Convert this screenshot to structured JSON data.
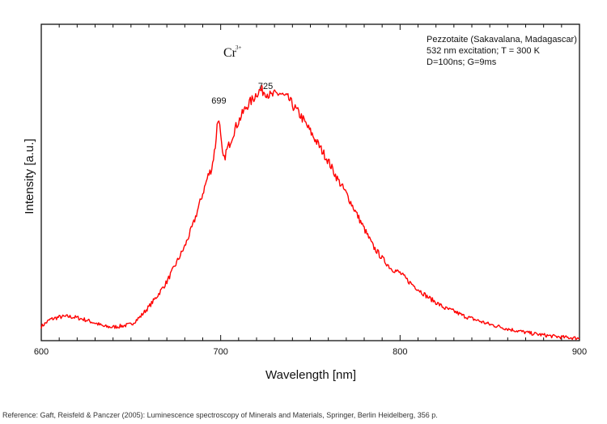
{
  "chart_data": {
    "type": "line",
    "title": "",
    "xlabel": "Wavelength [nm]",
    "ylabel": "Intensity [a.u.]",
    "xlim": [
      600,
      900
    ],
    "ylim": [
      0,
      1
    ],
    "x_ticks": [
      "600",
      "700",
      "800",
      "900"
    ],
    "y_tick_labels": false,
    "grid": false,
    "line_color": "#ff0000",
    "legend_text": [
      "Pezzotaite (Sakavalana, Madagascar)",
      "532 nm excitation; T = 300 K",
      "D=100ns; G=9ms"
    ],
    "legend_position": "top-right",
    "ion_label": {
      "base": "Cr",
      "sup": "3+"
    },
    "peak_labels": [
      {
        "text": "699",
        "x": 699,
        "y": 0.805
      },
      {
        "text": "725",
        "x": 725,
        "y": 0.855
      }
    ],
    "series": [
      {
        "x": [
          600,
          605,
          610,
          615,
          620,
          625,
          630,
          635,
          640,
          645,
          650,
          655,
          660,
          665,
          670,
          675,
          680,
          685,
          690,
          693,
          695,
          697,
          698,
          699,
          700,
          701,
          702,
          703,
          705,
          708,
          710,
          713,
          715,
          718,
          720,
          722,
          725,
          728,
          730,
          733,
          735,
          738,
          740,
          745,
          750,
          755,
          760,
          765,
          770,
          775,
          780,
          785,
          790,
          795,
          800,
          805,
          810,
          815,
          820,
          825,
          830,
          835,
          840,
          845,
          850,
          855,
          860,
          865,
          870,
          875,
          880,
          885,
          890,
          895,
          900
        ],
        "y": [
          0.048,
          0.072,
          0.08,
          0.082,
          0.078,
          0.07,
          0.06,
          0.048,
          0.046,
          0.05,
          0.055,
          0.08,
          0.115,
          0.155,
          0.2,
          0.26,
          0.32,
          0.4,
          0.5,
          0.56,
          0.585,
          0.66,
          0.73,
          0.76,
          0.69,
          0.63,
          0.615,
          0.64,
          0.67,
          0.72,
          0.745,
          0.78,
          0.8,
          0.82,
          0.84,
          0.85,
          0.845,
          0.83,
          0.835,
          0.84,
          0.83,
          0.82,
          0.8,
          0.76,
          0.71,
          0.66,
          0.61,
          0.55,
          0.5,
          0.44,
          0.38,
          0.32,
          0.28,
          0.245,
          0.23,
          0.2,
          0.175,
          0.15,
          0.13,
          0.11,
          0.1,
          0.085,
          0.075,
          0.065,
          0.055,
          0.048,
          0.04,
          0.034,
          0.028,
          0.023,
          0.019,
          0.015,
          0.012,
          0.01,
          0.008
        ]
      }
    ]
  },
  "footer": {
    "reference": "Reference: Gaft, Reisfeld & Panczer (2005): Luminescence spectroscopy of Minerals and Materials, Springer, Berlin Heidelberg, 356 p."
  }
}
